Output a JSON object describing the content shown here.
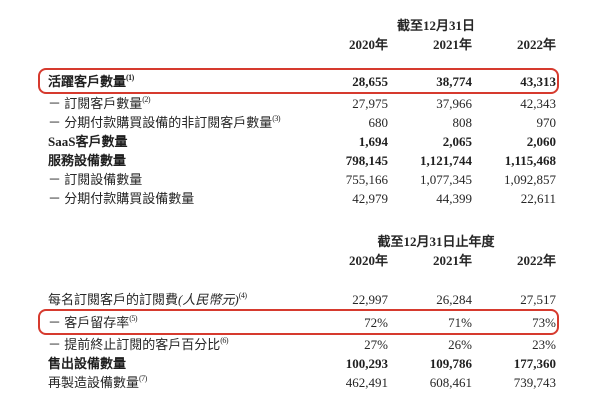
{
  "accent_color": "#d63a2e",
  "table1": {
    "period_header": "截至12月31日",
    "years": [
      "2020年",
      "2021年",
      "2022年"
    ],
    "rows": [
      {
        "label": "活躍客戶數量",
        "sup": "(1)",
        "values": [
          "28,655",
          "38,774",
          "43,313"
        ]
      },
      {
        "label": "－ 訂閱客戶數量",
        "sup": "(2)",
        "values": [
          "27,975",
          "37,966",
          "42,343"
        ]
      },
      {
        "label": "－ 分期付款購買設備的非訂閱客戶數量",
        "sup": "(3)",
        "values": [
          "680",
          "808",
          "970"
        ]
      },
      {
        "label": "SaaS客戶數量",
        "values": [
          "1,694",
          "2,065",
          "2,060"
        ]
      },
      {
        "label": "服務設備數量",
        "values": [
          "798,145",
          "1,121,744",
          "1,115,468"
        ]
      },
      {
        "label": "－ 訂閱設備數量",
        "values": [
          "755,166",
          "1,077,345",
          "1,092,857"
        ]
      },
      {
        "label": "－ 分期付款購買設備數量",
        "values": [
          "42,979",
          "44,399",
          "22,611"
        ]
      }
    ]
  },
  "table2": {
    "period_header": "截至12月31日止年度",
    "years": [
      "2020年",
      "2021年",
      "2022年"
    ],
    "rows": [
      {
        "label": "每名訂閱客戶的訂閱費",
        "note": "(人民幣元)",
        "sup": "(4)",
        "values": [
          "22,997",
          "26,284",
          "27,517"
        ]
      },
      {
        "label": "－ 客戶留存率",
        "sup": "(5)",
        "values": [
          "72%",
          "71%",
          "73%"
        ]
      },
      {
        "label": "－ 提前終止訂閱的客戶百分比",
        "sup": "(6)",
        "values": [
          "27%",
          "26%",
          "23%"
        ]
      },
      {
        "label": "售出設備數量",
        "values": [
          "100,293",
          "109,786",
          "177,360"
        ]
      },
      {
        "label": "再製造設備數量",
        "sup": "(7)",
        "values": [
          "462,491",
          "608,461",
          "739,743"
        ]
      }
    ]
  }
}
